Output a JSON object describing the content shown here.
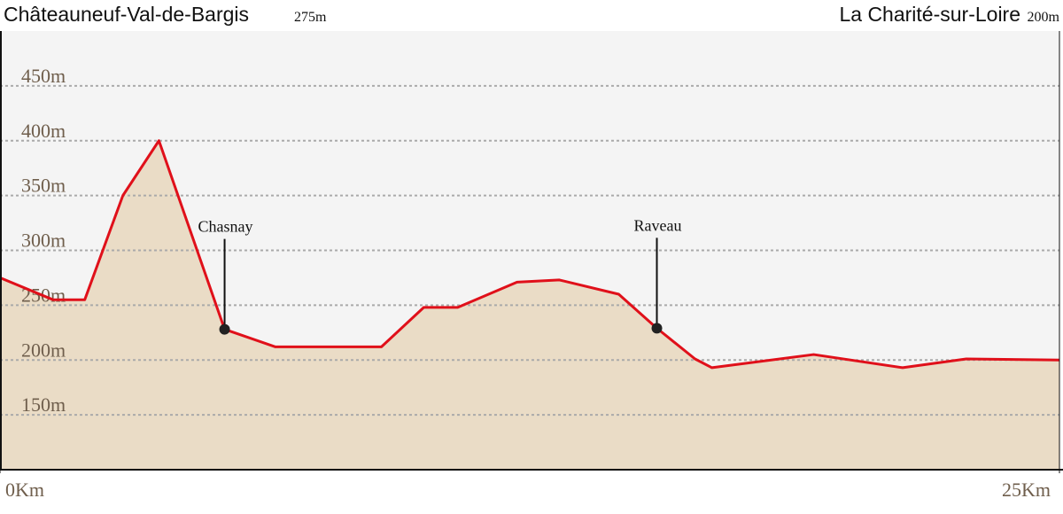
{
  "chart_data": {
    "type": "area",
    "start_name": "Châteauneuf-Val-de-Bargis",
    "start_elevation": "275m",
    "end_name": "La Charité-sur-Loire",
    "end_elevation": "200m",
    "x": [
      0,
      1.25,
      2.0,
      2.9,
      3.75,
      5.3,
      6.5,
      9.0,
      10.0,
      10.8,
      12.2,
      13.2,
      14.6,
      15.5,
      16.4,
      16.8,
      19.2,
      21.3,
      22.8,
      25
    ],
    "series": [
      {
        "color": "#e0101a",
        "fill": "#eadcc6",
        "values": [
          275,
          255,
          255,
          350,
          400,
          228,
          212,
          212,
          248,
          248,
          271,
          273,
          260,
          229,
          201,
          193,
          205,
          193,
          201,
          200
        ]
      }
    ],
    "xlim": [
      0,
      25
    ],
    "xticks": [
      {
        "value": 0,
        "label": "0Km"
      },
      {
        "value": 25,
        "label": "25Km"
      }
    ],
    "ylim": [
      100,
      500
    ],
    "yticks": [
      {
        "value": 150,
        "label": "150m"
      },
      {
        "value": 200,
        "label": "200m"
      },
      {
        "value": 250,
        "label": "250m"
      },
      {
        "value": 300,
        "label": "300m"
      },
      {
        "value": 350,
        "label": "350m"
      },
      {
        "value": 400,
        "label": "400m"
      },
      {
        "value": 450,
        "label": "450m"
      }
    ],
    "grid": true,
    "annotations": [
      {
        "label": "Chasnay",
        "x": 5.3,
        "y": 228
      },
      {
        "label": "Raveau",
        "x": 15.5,
        "y": 229
      }
    ]
  }
}
